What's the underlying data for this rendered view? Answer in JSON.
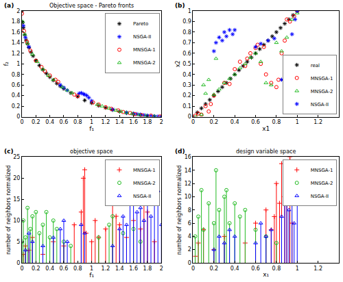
{
  "chart_data": [
    {
      "type": "scatter",
      "panel": "(a)",
      "title": "Objective space - Pareto fronts",
      "x_label": "f₁",
      "y_label": "f₂",
      "xlim": [
        0,
        2
      ],
      "xticks": [
        0,
        0.2,
        0.4,
        0.6,
        0.8,
        1,
        1.2,
        1.4,
        1.6,
        1.8,
        2
      ],
      "ylim": [
        0,
        2
      ],
      "yticks": [
        0,
        0.2,
        0.4,
        0.6,
        0.8,
        1,
        1.2,
        1.4,
        1.6,
        1.8,
        2
      ],
      "grid": false,
      "legend": "northeast",
      "series": [
        {
          "name": "Pareto",
          "color": "#000000",
          "marker": "asterisk",
          "x": [
            0,
            0.01,
            0.02,
            0.04,
            0.06,
            0.08,
            0.1,
            0.13,
            0.16,
            0.2,
            0.25,
            0.3,
            0.35,
            0.4,
            0.45,
            0.5,
            0.55,
            0.6,
            0.7,
            0.8,
            0.9,
            1.0,
            1.1,
            1.2,
            1.3,
            1.4,
            1.5,
            1.6,
            1.7,
            1.8,
            1.9,
            2.0
          ],
          "values": [
            2,
            1.78,
            1.68,
            1.55,
            1.45,
            1.38,
            1.31,
            1.22,
            1.15,
            1.06,
            0.97,
            0.89,
            0.82,
            0.75,
            0.69,
            0.63,
            0.58,
            0.53,
            0.45,
            0.38,
            0.31,
            0.26,
            0.21,
            0.17,
            0.13,
            0.1,
            0.07,
            0.05,
            0.03,
            0.015,
            0.005,
            0
          ]
        },
        {
          "name": "NSGA-II",
          "color": "#0000ff",
          "marker": "asterisk",
          "x": [
            0.02,
            0.05,
            0.1,
            0.55,
            0.6,
            0.65,
            0.82,
            0.85,
            0.88,
            0.9,
            0.93,
            0.96,
            1.0,
            1.3,
            1.5,
            1.6,
            1.65,
            1.7,
            1.75,
            1.8,
            1.85,
            1.9,
            1.95,
            2.0
          ],
          "values": [
            1.72,
            1.5,
            1.32,
            0.6,
            0.55,
            0.5,
            0.44,
            0.45,
            0.43,
            0.42,
            0.4,
            0.36,
            0.3,
            0.14,
            0.08,
            0.06,
            0.05,
            0.04,
            0.03,
            0.02,
            0.015,
            0.01,
            0.005,
            0
          ]
        },
        {
          "name": "MNSGA-1",
          "color": "#ff0000",
          "marker": "circle",
          "x": [
            0,
            0.03,
            0.07,
            0.12,
            0.2,
            0.28,
            0.33,
            0.4,
            0.48,
            0.52,
            0.75,
            0.8,
            1.02,
            1.1,
            1.2,
            1.28,
            1.38,
            1.45,
            1.55,
            1.62,
            1.72,
            1.85,
            1.98
          ],
          "values": [
            1.95,
            1.62,
            1.42,
            1.25,
            1.06,
            0.94,
            0.86,
            0.78,
            0.7,
            0.66,
            0.42,
            0.39,
            0.27,
            0.23,
            0.18,
            0.15,
            0.12,
            0.09,
            0.07,
            0.05,
            0.03,
            0.02,
            0.005
          ]
        },
        {
          "name": "MNSGA-2",
          "color": "#22bb22",
          "marker": "triangle",
          "x": [
            0.01,
            0.04,
            0.08,
            0.15,
            0.22,
            0.3,
            0.38,
            0.45,
            0.58,
            0.65,
            0.72,
            1.08,
            1.15,
            1.25,
            1.35,
            1.42,
            1.5,
            1.58,
            1.68,
            1.78,
            1.9
          ],
          "values": [
            1.8,
            1.56,
            1.39,
            1.18,
            1.04,
            0.9,
            0.78,
            0.7,
            0.56,
            0.5,
            0.45,
            0.23,
            0.2,
            0.16,
            0.12,
            0.1,
            0.08,
            0.06,
            0.04,
            0.02,
            0.01
          ]
        }
      ]
    },
    {
      "type": "scatter",
      "panel": "(b)",
      "x_label": "x1",
      "y_label": "x2",
      "xlim": [
        0,
        1.4
      ],
      "xticks": [
        0,
        0.2,
        0.4,
        0.6,
        0.8,
        1,
        1.2,
        1.4
      ],
      "ylim": [
        0,
        1
      ],
      "yticks": [
        0,
        0.1,
        0.2,
        0.3,
        0.4,
        0.5,
        0.6,
        0.7,
        0.8,
        0.9,
        1
      ],
      "grid": false,
      "legend": "southeast",
      "series": [
        {
          "name": "real",
          "color": "#000000",
          "marker": "asterisk",
          "x": [
            0,
            0.04,
            0.08,
            0.12,
            0.16,
            0.2,
            0.24,
            0.28,
            0.32,
            0.36,
            0.4,
            0.44,
            0.48,
            0.52,
            0.56,
            0.6,
            0.64,
            0.68,
            0.72,
            0.76,
            0.8,
            0.84,
            0.88,
            0.92,
            0.96,
            1
          ],
          "values": [
            0,
            0.04,
            0.08,
            0.12,
            0.16,
            0.2,
            0.24,
            0.28,
            0.32,
            0.36,
            0.4,
            0.44,
            0.48,
            0.52,
            0.56,
            0.6,
            0.64,
            0.68,
            0.72,
            0.76,
            0.8,
            0.84,
            0.88,
            0.92,
            0.96,
            1
          ]
        },
        {
          "name": "MNSGA-1",
          "color": "#ff0000",
          "marker": "circle",
          "x": [
            0.02,
            0.05,
            0.08,
            0.12,
            0.15,
            0.17,
            0.2,
            0.3,
            0.35,
            0.4,
            0.45,
            0.5,
            0.52,
            0.55,
            0.6,
            0.62,
            0.65,
            0.68,
            0.7,
            0.75,
            0.8,
            0.82,
            0.85,
            0.88,
            0.9,
            0.93,
            0.97,
            1.0
          ],
          "values": [
            0.01,
            0.03,
            0.02,
            0.1,
            0.05,
            0.12,
            0.2,
            0.32,
            0.31,
            0.45,
            0.52,
            0.48,
            0.55,
            0.6,
            0.65,
            0.68,
            0.5,
            0.66,
            0.4,
            0.32,
            0.28,
            0.35,
            0.6,
            0.72,
            0.92,
            0.9,
            0.95,
            1.0
          ]
        },
        {
          "name": "MNSGA-2",
          "color": "#22bb22",
          "marker": "triangle",
          "x": [
            0.03,
            0.08,
            0.1,
            0.12,
            0.15,
            0.2,
            0.22,
            0.25,
            0.3,
            0.35,
            0.4,
            0.45,
            0.5,
            0.55,
            0.6,
            0.65,
            0.7,
            0.75,
            0.8,
            0.85,
            0.9,
            0.95,
            1.0
          ],
          "values": [
            0.0,
            0.02,
            0.3,
            0.22,
            0.35,
            0.21,
            0.55,
            0.26,
            0.32,
            0.36,
            0.4,
            0.46,
            0.5,
            0.56,
            0.6,
            0.52,
            0.32,
            0.3,
            0.7,
            0.62,
            0.75,
            0.92,
            0.98
          ]
        },
        {
          "name": "NSGA-II",
          "color": "#0000ff",
          "marker": "asterisk",
          "x": [
            0.2,
            0.22,
            0.25,
            0.28,
            0.3,
            0.32,
            0.35,
            0.38,
            0.4,
            0.6,
            0.65,
            0.72,
            0.78,
            0.85,
            0.88,
            0.9,
            0.92,
            0.95,
            0.98,
            1.0
          ],
          "values": [
            0.62,
            0.7,
            0.75,
            0.72,
            0.8,
            0.76,
            0.82,
            0.78,
            0.82,
            0.66,
            0.69,
            0.72,
            0.74,
            0.35,
            0.4,
            0.38,
            0.3,
            0.78,
            0.92,
            1.0
          ]
        }
      ]
    },
    {
      "type": "stem",
      "panel": "(c)",
      "title": "objective space",
      "x_label": "f₁",
      "y_label": "number of neighbors normalized",
      "xlim": [
        0,
        2
      ],
      "xticks": [
        0,
        0.2,
        0.4,
        0.6,
        0.8,
        1,
        1.2,
        1.4,
        1.6,
        1.8,
        2
      ],
      "ylim": [
        0,
        25
      ],
      "yticks": [
        0,
        5,
        10,
        15,
        20,
        25
      ],
      "grid": false,
      "legend": "northeast",
      "series": [
        {
          "name": "MNSGA-1",
          "color": "#ff0000",
          "marker": "plus",
          "x": [
            0.02,
            0.05,
            0.1,
            0.15,
            0.3,
            0.45,
            0.6,
            0.75,
            0.85,
            0.88,
            0.9,
            0.92,
            1.0,
            1.05,
            1.1,
            1.2,
            1.3,
            1.35,
            1.4,
            1.5,
            1.6,
            1.7,
            1.75,
            1.8,
            1.9
          ],
          "values": [
            2,
            4,
            3,
            6,
            2,
            5,
            4,
            9,
            12,
            20,
            22,
            7,
            5,
            10,
            6,
            8,
            14,
            11,
            9,
            6,
            10,
            8,
            17,
            12,
            5
          ]
        },
        {
          "name": "MNSGA-2",
          "color": "#22bb22",
          "marker": "circle",
          "x": [
            0.0,
            0.02,
            0.05,
            0.08,
            0.12,
            0.15,
            0.2,
            0.25,
            0.3,
            0.35,
            0.4,
            0.45,
            0.5,
            0.6,
            0.7,
            1.1,
            1.25,
            1.3,
            1.45,
            1.6,
            1.7
          ],
          "values": [
            5,
            10,
            6,
            13,
            8,
            11,
            12,
            7,
            9,
            12,
            6,
            10,
            8,
            5,
            4,
            6,
            9,
            11,
            7,
            8,
            5
          ]
        },
        {
          "name": "NSGA-II",
          "color": "#0000ff",
          "marker": "triangle",
          "x": [
            0.05,
            0.1,
            0.15,
            0.3,
            0.45,
            0.55,
            0.6,
            0.65,
            0.85,
            0.9,
            1.3,
            1.4,
            1.45,
            1.5,
            1.55,
            1.6,
            1.65,
            1.7,
            1.75,
            1.8,
            1.85,
            1.9,
            1.95,
            2.0
          ],
          "values": [
            3,
            7,
            5,
            4,
            6,
            8,
            10,
            5,
            9,
            7,
            4,
            8,
            11,
            9,
            14,
            15,
            12,
            13,
            10,
            14,
            11,
            16,
            17,
            9
          ]
        }
      ]
    },
    {
      "type": "stem",
      "panel": "(d)",
      "title": "design variable space",
      "x_label": "x₁",
      "y_label": "number of neighbors normalized",
      "xlim": [
        0,
        1.4
      ],
      "xticks": [
        0,
        0.2,
        0.4,
        0.6,
        0.8,
        1,
        1.2,
        1.4
      ],
      "ylim": [
        0,
        16
      ],
      "yticks": [
        0,
        2,
        4,
        6,
        8,
        10,
        12,
        14,
        16
      ],
      "grid": false,
      "legend": "northeast",
      "series": [
        {
          "name": "MNSGA-1",
          "color": "#ff0000",
          "marker": "plus",
          "x": [
            0.02,
            0.05,
            0.1,
            0.2,
            0.3,
            0.5,
            0.6,
            0.7,
            0.75,
            0.78,
            0.8,
            0.83,
            0.85,
            0.88,
            0.9,
            0.93,
            0.95
          ],
          "values": [
            1,
            3,
            5,
            2,
            4,
            3,
            6,
            8,
            5,
            7,
            12,
            9,
            15,
            10,
            13,
            16,
            6
          ]
        },
        {
          "name": "MNSGA-2",
          "color": "#22bb22",
          "marker": "circle",
          "x": [
            0.02,
            0.05,
            0.08,
            0.1,
            0.15,
            0.2,
            0.22,
            0.25,
            0.3,
            0.32,
            0.35,
            0.4,
            0.45,
            0.5,
            0.6,
            0.7,
            0.8
          ],
          "values": [
            4,
            7,
            11,
            5,
            9,
            6,
            14,
            8,
            10,
            11,
            6,
            9,
            7,
            8,
            5,
            4,
            3
          ]
        },
        {
          "name": "NSGA-II",
          "color": "#0000ff",
          "marker": "triangle",
          "x": [
            0.2,
            0.25,
            0.3,
            0.35,
            0.4,
            0.6,
            0.65,
            0.7,
            0.75,
            0.85,
            0.88,
            0.9,
            0.92,
            0.95,
            0.97,
            1.0
          ],
          "values": [
            2,
            4,
            3,
            5,
            4,
            3,
            6,
            4,
            5,
            7,
            9,
            12,
            8,
            10,
            6,
            11
          ]
        }
      ]
    }
  ]
}
